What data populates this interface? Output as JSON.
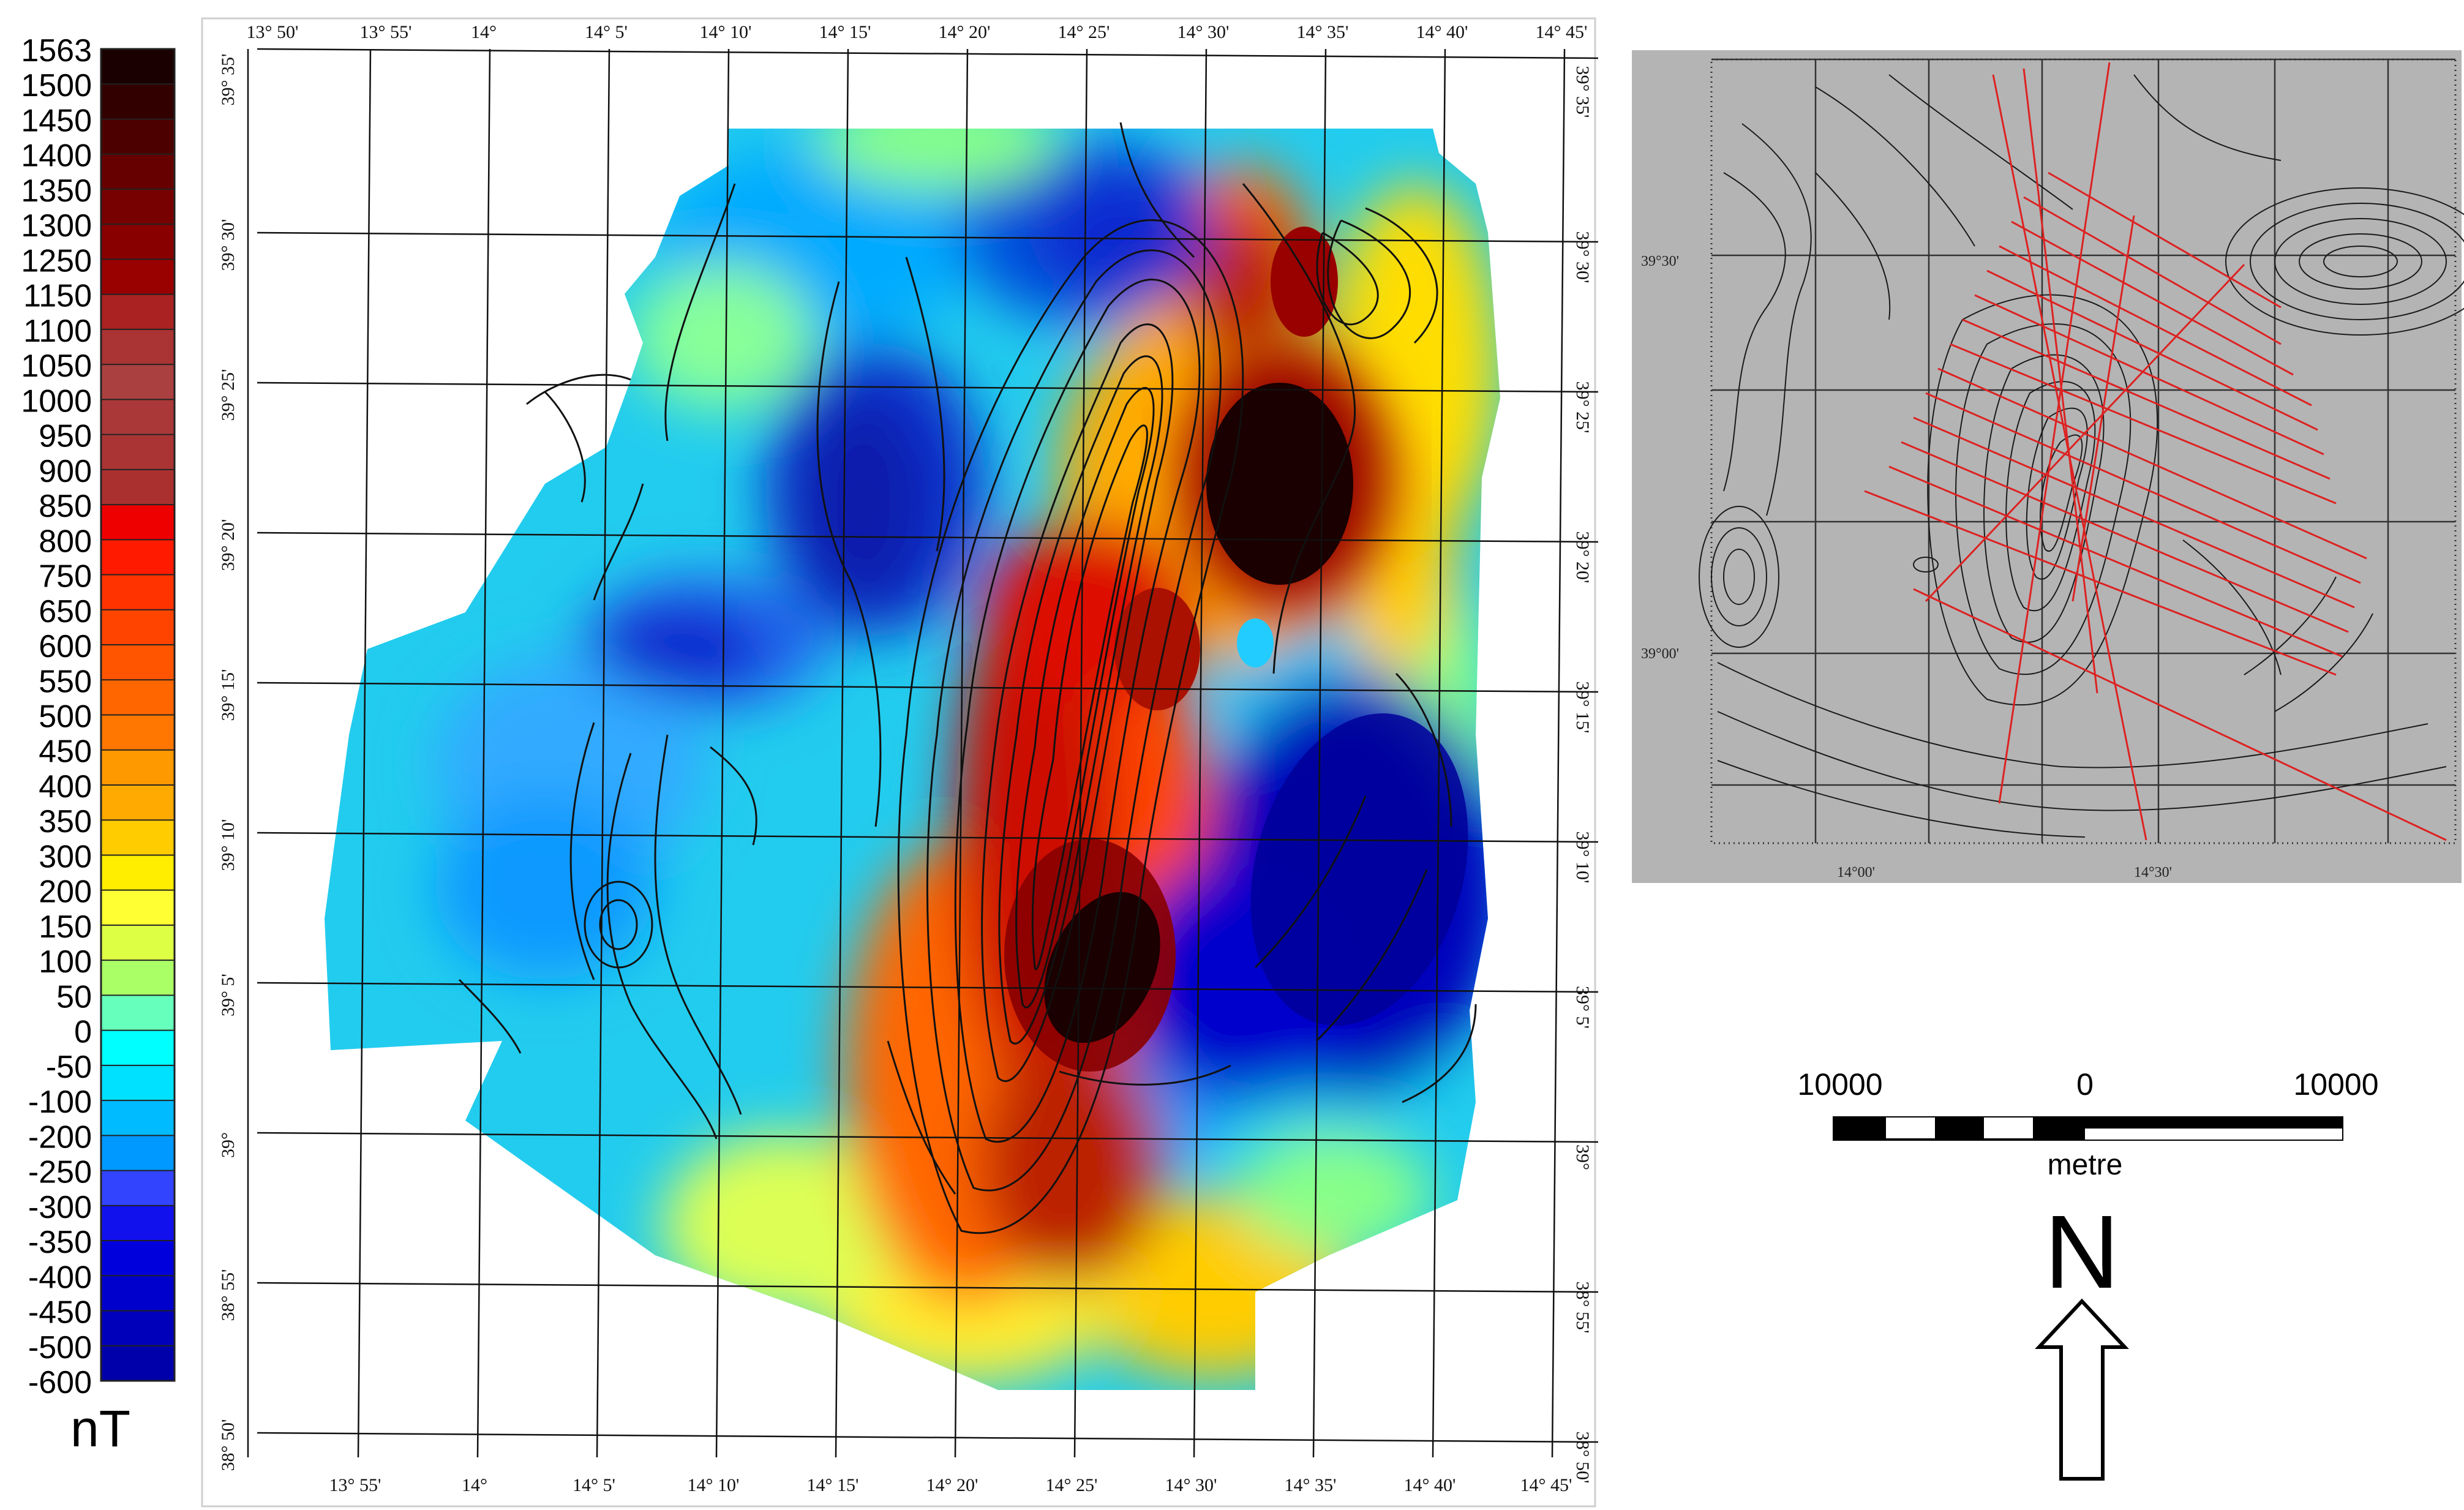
{
  "legend": {
    "unit": "nT",
    "ticks": [
      "1563",
      "1500",
      "1450",
      "1400",
      "1350",
      "1300",
      "1250",
      "1150",
      "1100",
      "1050",
      "1000",
      "950",
      "900",
      "850",
      "800",
      "750",
      "650",
      "600",
      "550",
      "500",
      "450",
      "400",
      "350",
      "300",
      "200",
      "150",
      "100",
      "50",
      "0",
      "-50",
      "-100",
      "-200",
      "-250",
      "-300",
      "-350",
      "-400",
      "-450",
      "-500",
      "-600"
    ],
    "colors": [
      "#1a0000",
      "#330000",
      "#4d0000",
      "#660000",
      "#770000",
      "#880000",
      "#990000",
      "#aa2222",
      "#aa3333",
      "#aa4040",
      "#aa3838",
      "#aa3434",
      "#aa3030",
      "#ee0000",
      "#ff1a00",
      "#ff3300",
      "#ff4400",
      "#ff5500",
      "#ff6600",
      "#ff7700",
      "#ff9900",
      "#ffaa00",
      "#ffcc00",
      "#ffee00",
      "#ffff33",
      "#ddff44",
      "#aaff66",
      "#66ffbb",
      "#00ffff",
      "#00e0ff",
      "#00bbff",
      "#0099ff",
      "#3344ff",
      "#1111ee",
      "#0000dd",
      "#0000cc",
      "#0000bb",
      "#0000aa",
      "#000099"
    ]
  },
  "main_map": {
    "top_lon_labels": [
      "13° 50'",
      "13° 55'",
      "14°",
      "14° 5'",
      "14° 10'",
      "14° 15'",
      "14° 20'",
      "14° 25'",
      "14° 30'",
      "14° 35'",
      "14° 40'",
      "14° 45'"
    ],
    "bottom_lon_labels": [
      "13° 55'",
      "14°",
      "14° 5'",
      "14° 10'",
      "14° 15'",
      "14° 20'",
      "14° 25'",
      "14° 30'",
      "14° 35'",
      "14° 40'",
      "14° 45'"
    ],
    "left_lat_labels": [
      "39° 35'",
      "39° 30'",
      "39° 25'",
      "39° 20'",
      "39° 15'",
      "39° 10'",
      "39° 5'",
      "39°",
      "38° 55'",
      "38° 50'"
    ],
    "right_lat_labels": [
      "39° 35'",
      "39° 30'",
      "39° 25'",
      "39° 20'",
      "39° 15'",
      "39° 10'",
      "39° 5'",
      "39°",
      "38° 55'",
      "38° 50'"
    ]
  },
  "inset_map": {
    "lat_labels": [
      "39°30'",
      "39°00'"
    ],
    "lon_labels": [
      "14°00'",
      "14°30'"
    ],
    "background": "#b4b4b4",
    "track_color": "#dd2222"
  },
  "scale_bar": {
    "labels": [
      "10000",
      "0",
      "10000"
    ],
    "unit": "metre"
  },
  "north_arrow": {
    "label": "N"
  }
}
